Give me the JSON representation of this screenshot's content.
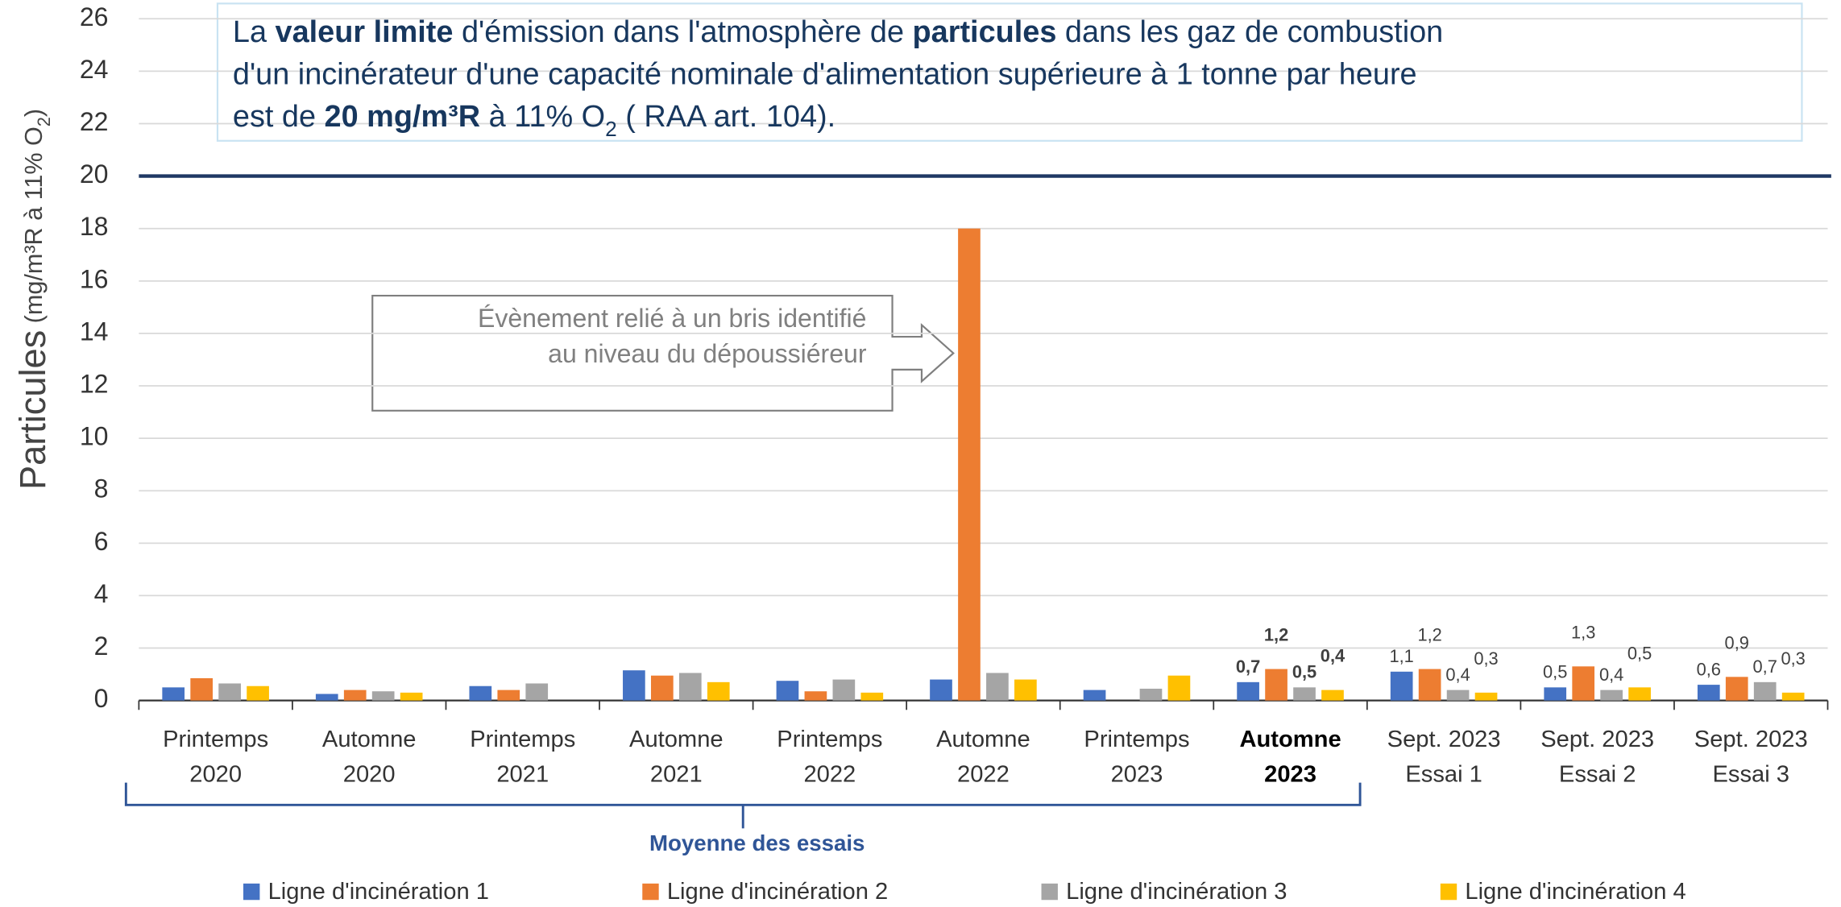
{
  "chart_data": {
    "type": "bar",
    "y_label": [
      {
        "text": "Particules",
        "style": "big"
      },
      {
        "text": " (mg/m³R à 11% O",
        "style": "small"
      },
      {
        "text": "2",
        "style": "sub"
      },
      {
        "text": ")",
        "style": "small"
      }
    ],
    "limit_note": [
      [
        {
          "text": "La "
        },
        {
          "text": "valeur limite",
          "style": "b"
        },
        {
          "text": " d'émission dans l'atmosphère de "
        },
        {
          "text": "particules",
          "style": "b"
        },
        {
          "text": " dans les gaz de combustion"
        }
      ],
      [
        {
          "text": "d'un incinérateur d'une capacité nominale d'alimentation supérieure à 1 tonne par heure"
        }
      ],
      [
        {
          "text": "est de "
        },
        {
          "text": "20 mg/m³R",
          "style": "b"
        },
        {
          "text": " à 11% O"
        },
        {
          "text": "2",
          "style": "sub"
        },
        {
          "text": " ( RAA art. 104)."
        }
      ]
    ],
    "reference_line": {
      "value": 20,
      "color": "#1f3864"
    },
    "callout": [
      "Évènement relié à un bris identifié",
      "au niveau du dépoussiéreur"
    ],
    "categories": [
      [
        "Printemps",
        "2020"
      ],
      [
        "Automne",
        "2020"
      ],
      [
        "Printemps",
        "2021"
      ],
      [
        "Automne",
        "2021"
      ],
      [
        "Printemps",
        "2022"
      ],
      [
        "Automne",
        "2022"
      ],
      [
        "Printemps",
        "2023"
      ],
      [
        "Automne",
        "2023"
      ],
      [
        "Sept. 2023",
        "Essai 1"
      ],
      [
        "Sept. 2023",
        "Essai 2"
      ],
      [
        "Sept. 2023",
        "Essai 3"
      ]
    ],
    "bold_categories": [
      7
    ],
    "category_group": {
      "label": "Moyenne des essais",
      "span": [
        0,
        7
      ]
    },
    "series": [
      {
        "name": "Ligne d'incinération 1",
        "color": "#4472c4",
        "values": [
          0.5,
          0.25,
          0.55,
          1.15,
          0.75,
          0.8,
          0.4,
          0.7,
          1.1,
          0.5,
          0.6
        ],
        "value_labels": [
          null,
          null,
          null,
          null,
          null,
          null,
          null,
          "0,7",
          "1,1",
          "0,5",
          "0,6"
        ]
      },
      {
        "name": "Ligne d'incinération 2",
        "color": "#ed7d31",
        "values": [
          0.85,
          0.4,
          0.4,
          0.95,
          0.35,
          18,
          null,
          1.2,
          1.2,
          1.3,
          0.9
        ],
        "value_labels": [
          null,
          null,
          null,
          null,
          null,
          null,
          null,
          "1,2",
          "1,2",
          "1,3",
          "0,9"
        ]
      },
      {
        "name": "Ligne d'incinération 3",
        "color": "#a5a5a5",
        "values": [
          0.65,
          0.35,
          0.65,
          1.05,
          0.8,
          1.05,
          0.45,
          0.5,
          0.4,
          0.4,
          0.7
        ],
        "value_labels": [
          null,
          null,
          null,
          null,
          null,
          null,
          null,
          "0,5",
          "0,4",
          "0,4",
          "0,7"
        ]
      },
      {
        "name": "Ligne d'incinération 4",
        "color": "#ffc000",
        "values": [
          0.55,
          0.3,
          null,
          0.7,
          0.3,
          0.8,
          0.95,
          0.4,
          0.3,
          0.5,
          0.3
        ],
        "value_labels": [
          null,
          null,
          null,
          null,
          null,
          null,
          null,
          "0,4",
          "0,3",
          "0,5",
          "0,3"
        ]
      }
    ],
    "ylim": [
      0,
      26
    ],
    "yticks": [
      0,
      2,
      4,
      6,
      8,
      10,
      12,
      14,
      16,
      18,
      20,
      22,
      24,
      26
    ],
    "grid": true,
    "legend": "bottom"
  }
}
